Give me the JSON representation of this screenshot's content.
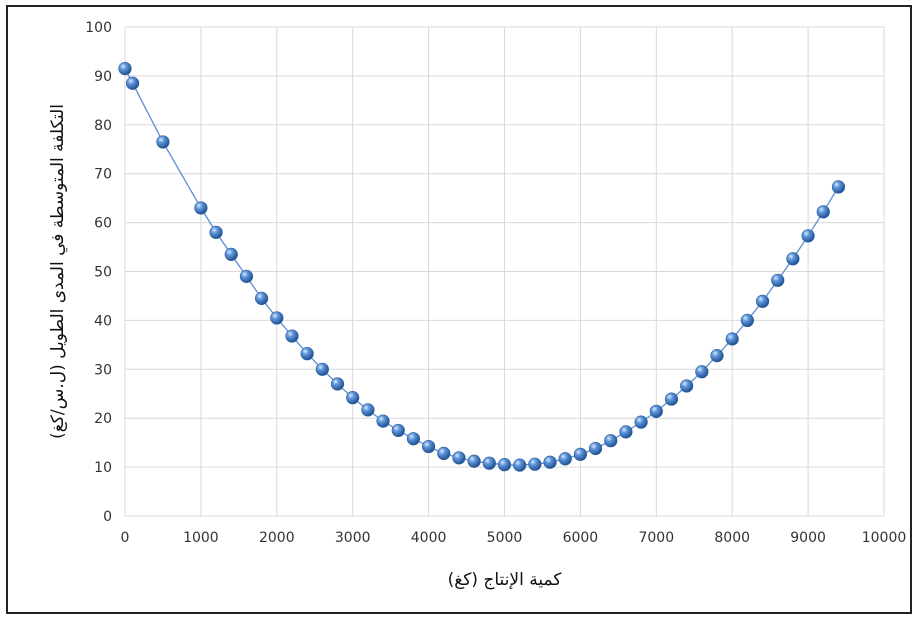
{
  "chart_data": {
    "type": "scatter",
    "title": "",
    "xlabel": "كمية الإنتاج (كغ)",
    "ylabel": "التكلفة المتوسطة في المدى الطويل (ل.س/كغ)",
    "xlim": [
      0,
      10000
    ],
    "ylim": [
      0,
      100
    ],
    "x_ticks": [
      0,
      1000,
      2000,
      3000,
      4000,
      5000,
      6000,
      7000,
      8000,
      9000,
      10000
    ],
    "y_ticks": [
      0,
      10,
      20,
      30,
      40,
      50,
      60,
      70,
      80,
      90,
      100
    ],
    "grid": true,
    "legend": "none",
    "series": [
      {
        "marker_color": "#3a78c9",
        "line_color": "#5b8fd0",
        "x": [
          0,
          100,
          500,
          1000,
          1200,
          1400,
          1600,
          1800,
          2000,
          2200,
          2400,
          2600,
          2800,
          3000,
          3200,
          3400,
          3600,
          3800,
          4000,
          4200,
          4400,
          4600,
          4800,
          5000,
          5200,
          5400,
          5600,
          5800,
          6000,
          6200,
          6400,
          6600,
          6800,
          7000,
          7200,
          7400,
          7600,
          7800,
          8000,
          8200,
          8400,
          8600,
          8800,
          9000,
          9200,
          9400
        ],
        "y": [
          91.5,
          88.5,
          76.5,
          63.0,
          58.0,
          53.5,
          49.0,
          44.5,
          40.5,
          36.8,
          33.2,
          30.0,
          27.0,
          24.2,
          21.7,
          19.4,
          17.5,
          15.8,
          14.2,
          12.8,
          11.9,
          11.2,
          10.8,
          10.5,
          10.4,
          10.6,
          11.0,
          11.7,
          12.6,
          13.8,
          15.4,
          17.2,
          19.2,
          21.4,
          23.9,
          26.6,
          29.5,
          32.8,
          36.2,
          40.0,
          43.9,
          48.2,
          52.6,
          57.3,
          62.2,
          67.3
        ]
      }
    ]
  }
}
